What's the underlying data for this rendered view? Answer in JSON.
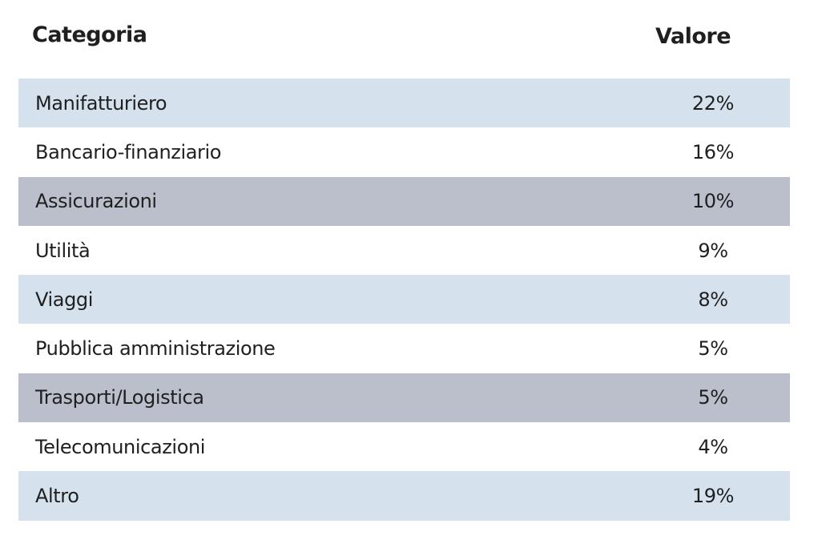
{
  "chart_data": {
    "type": "table",
    "columns": [
      "Categoria",
      "Valore"
    ],
    "rows": [
      {
        "category": "Manifatturiero",
        "value": "22%",
        "band": "light"
      },
      {
        "category": "Bancario-finanziario",
        "value": "16%",
        "band": "white"
      },
      {
        "category": "Assicurazioni",
        "value": "10%",
        "band": "dark"
      },
      {
        "category": "Utilità",
        "value": "9%",
        "band": "white"
      },
      {
        "category": "Viaggi",
        "value": "8%",
        "band": "light"
      },
      {
        "category": "Pubblica amministrazione",
        "value": "5%",
        "band": "white"
      },
      {
        "category": "Trasporti/Logistica",
        "value": "5%",
        "band": "dark"
      },
      {
        "category": "Telecomunicazioni",
        "value": "4%",
        "band": "white"
      },
      {
        "category": "Altro",
        "value": "19%",
        "band": "light"
      }
    ],
    "colors": {
      "band_light": "#d6e1ee",
      "band_dark": "#bbbfcb",
      "band_white": "#ffffff",
      "text": "#1f1f1f"
    }
  }
}
